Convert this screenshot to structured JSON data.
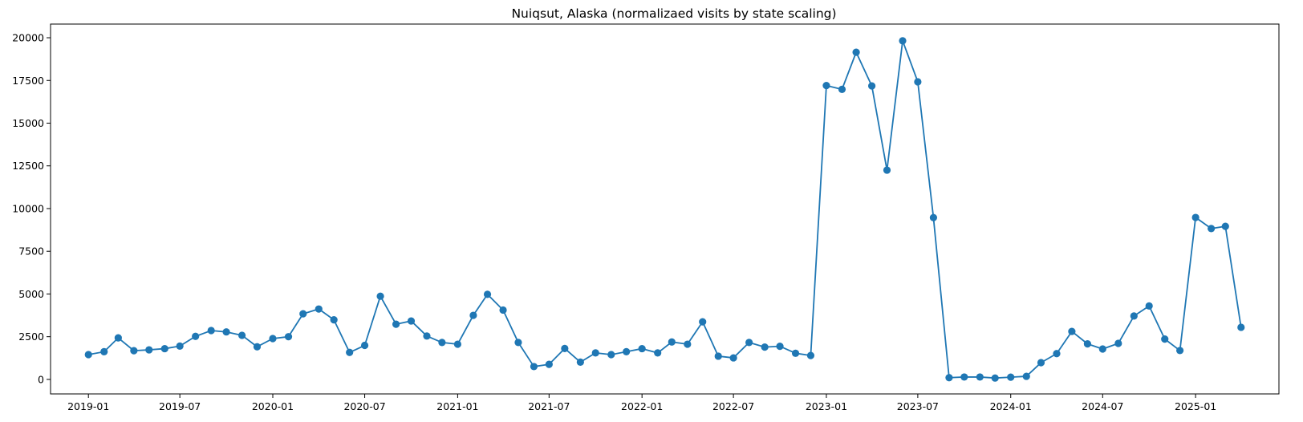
{
  "chart_data": {
    "type": "line",
    "title": "Nuiqsut, Alaska (normalizaed visits by state scaling)",
    "xlabel": "",
    "ylabel": "",
    "grid": false,
    "legend": "none",
    "marker": "circle",
    "color": "#1f77b4",
    "x_axis": {
      "type": "date",
      "range": [
        "2018-10-18",
        "2025-06-15"
      ],
      "ticks": [
        "2019-01",
        "2019-07",
        "2020-01",
        "2020-07",
        "2021-01",
        "2021-07",
        "2022-01",
        "2022-07",
        "2023-01",
        "2023-07",
        "2024-01",
        "2024-07",
        "2025-01"
      ]
    },
    "y_axis": {
      "range": [
        -850,
        20800
      ],
      "ticks": [
        0,
        2500,
        5000,
        7500,
        10000,
        12500,
        15000,
        17500,
        20000
      ]
    },
    "series": [
      {
        "x": [
          "2019-01",
          "2019-02",
          "2019-03",
          "2019-04",
          "2019-05",
          "2019-06",
          "2019-07",
          "2019-08",
          "2019-09",
          "2019-10",
          "2019-11",
          "2019-12",
          "2020-01",
          "2020-02",
          "2020-03",
          "2020-04",
          "2020-05",
          "2020-06",
          "2020-07",
          "2020-08",
          "2020-09",
          "2020-10",
          "2020-11",
          "2020-12",
          "2021-01",
          "2021-02",
          "2021-03",
          "2021-04",
          "2021-05",
          "2021-06",
          "2021-07",
          "2021-08",
          "2021-09",
          "2021-10",
          "2021-11",
          "2021-12",
          "2022-01",
          "2022-02",
          "2022-03",
          "2022-04",
          "2022-05",
          "2022-06",
          "2022-07",
          "2022-08",
          "2022-09",
          "2022-10",
          "2022-11",
          "2022-12",
          "2023-01",
          "2023-02",
          "2023-03",
          "2023-04",
          "2023-05",
          "2023-06",
          "2023-07",
          "2023-08",
          "2023-09",
          "2023-10",
          "2023-11",
          "2023-12",
          "2024-01",
          "2024-02",
          "2024-03",
          "2024-04",
          "2024-05",
          "2024-06",
          "2024-07",
          "2024-08",
          "2024-09",
          "2024-10",
          "2024-11",
          "2024-12",
          "2025-01",
          "2025-02",
          "2025-03",
          "2025-04"
        ],
        "y": [
          1450,
          1620,
          2430,
          1680,
          1730,
          1800,
          1950,
          2520,
          2860,
          2780,
          2580,
          1910,
          2390,
          2500,
          3840,
          4120,
          3490,
          1580,
          1990,
          4870,
          3230,
          3420,
          2540,
          2160,
          2060,
          3750,
          4980,
          4060,
          2160,
          750,
          880,
          1810,
          1010,
          1550,
          1450,
          1620,
          1800,
          1550,
          2190,
          2060,
          3370,
          1360,
          1260,
          2160,
          1890,
          1940,
          1530,
          1400,
          17200,
          16980,
          19150,
          17180,
          12250,
          19820,
          17420,
          9470,
          100,
          140,
          140,
          80,
          130,
          180,
          980,
          1510,
          2810,
          2080,
          1780,
          2110,
          3710,
          4300,
          2360,
          1690,
          9480,
          8830,
          8960,
          3050
        ]
      }
    ]
  }
}
